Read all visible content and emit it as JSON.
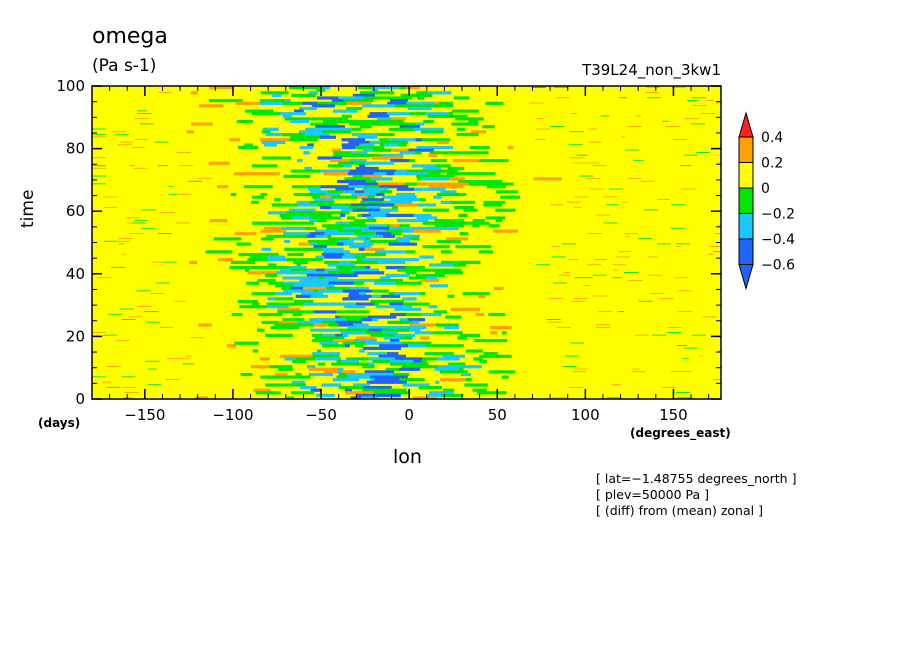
{
  "chart_data": {
    "type": "heatmap",
    "title": "omega",
    "units": "(Pa s-1)",
    "run_label": "T39L24_non_3kw1",
    "xlabel": "lon",
    "xunits": "(degrees_east)",
    "ylabel": "time",
    "yunits": "(days)",
    "xlim": [
      -180,
      177
    ],
    "ylim": [
      0,
      100
    ],
    "xticks": [
      -150,
      -100,
      -50,
      0,
      50,
      100,
      150
    ],
    "yticks": [
      0,
      20,
      40,
      60,
      80,
      100
    ],
    "colorbar": {
      "levels": [
        -0.6,
        -0.4,
        -0.2,
        0,
        0.2,
        0.4
      ],
      "labels": [
        "0.4",
        "0.2",
        "0",
        "−0.2",
        "−0.4",
        "−0.6"
      ],
      "colors": [
        "#1e64ff",
        "#19c8ff",
        "#00e600",
        "#ffff00",
        "#ffa000",
        "#ff2020"
      ],
      "extend": "both"
    },
    "annotations": [
      "[ lat=−1.48755 degrees_north ]",
      "[ plev=50000 Pa ]",
      "[ (diff) from (mean) zonal ]"
    ]
  }
}
